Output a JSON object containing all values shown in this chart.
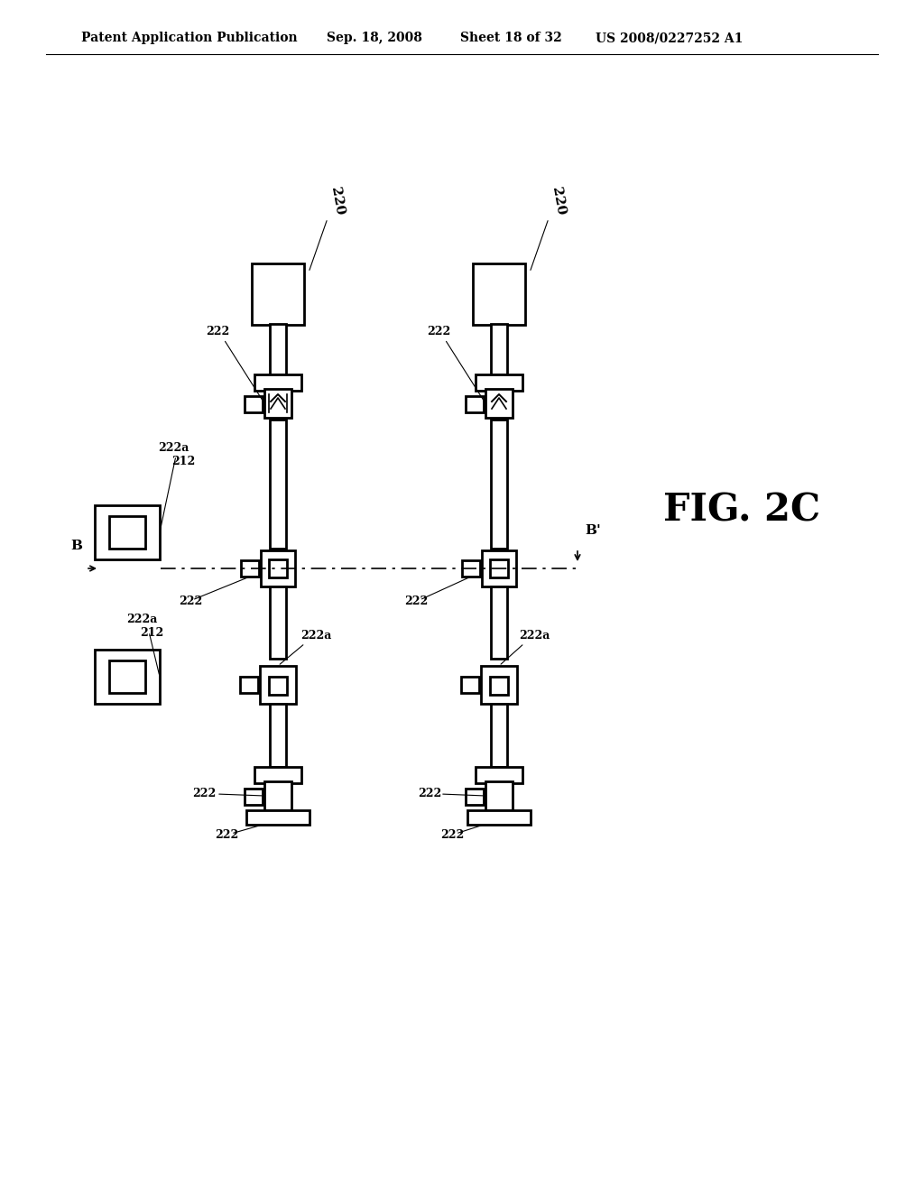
{
  "bg_color": "#ffffff",
  "line_color": "#000000",
  "header_text": "Patent Application Publication",
  "header_date": "Sep. 18, 2008",
  "header_sheet": "Sheet 18 of 32",
  "header_patent": "US 2008/0227252 A1",
  "fig_label": "FIG. 2C",
  "label_220_left": "220",
  "label_220_right": "220",
  "label_222a_tl": "222a",
  "label_212_tl": "212",
  "label_222a_bl": "222a",
  "label_212_bl": "212",
  "label_222_left_col": "222",
  "label_222a_center_left": "222a",
  "label_222a_center_right": "222a",
  "label_B": "B",
  "label_Bprime": "B'",
  "lw": 2.0
}
